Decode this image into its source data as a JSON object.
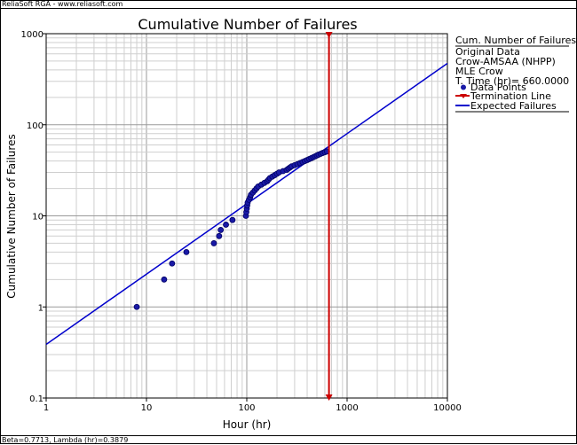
{
  "header": {
    "text": "ReliaSoft RGA - www.reliasoft.com"
  },
  "footer": {
    "text": "Beta=0.7713, Lambda (hr)=0.3879"
  },
  "colors": {
    "points": "#1a1aa6",
    "points_edge": "#000066",
    "line": "#0000cc",
    "termination": "#cc0000",
    "grid_major": "#9a9a9a",
    "grid_minor": "#cfcfcf"
  },
  "legend": {
    "title": "Cum. Number of Failures",
    "lines": [
      "Original Data",
      "Crow-AMSAA (NHPP)",
      "MLE Crow",
      "T. Time (hr)= 660.0000"
    ],
    "items": [
      {
        "label": "Data Points",
        "kind": "point"
      },
      {
        "label": "Termination Line",
        "kind": "termination"
      },
      {
        "label": "Expected Failures",
        "kind": "line"
      }
    ]
  },
  "chart_data": {
    "type": "scatter",
    "title": "Cumulative Number of Failures",
    "xlabel": "Hour (hr)",
    "ylabel": "Cumulative Number of Failures",
    "xscale": "log",
    "yscale": "log",
    "xlim": [
      1,
      10000
    ],
    "ylim": [
      0.1,
      1000
    ],
    "xticks": [
      1,
      10,
      100,
      1000,
      10000
    ],
    "xtick_labels": [
      "1",
      "10",
      "100",
      "1000",
      "10000"
    ],
    "yticks": [
      0.1,
      1,
      10,
      100,
      1000
    ],
    "ytick_labels": [
      "0.1",
      "1",
      "10",
      "100",
      "1000"
    ],
    "grid": true,
    "legend_position": "right",
    "series": [
      {
        "name": "Data Points",
        "kind": "points",
        "x": [
          8,
          15,
          18,
          25,
          47,
          53,
          55,
          62,
          72,
          98,
          99,
          100,
          101,
          102,
          105,
          108,
          110,
          115,
          120,
          125,
          130,
          140,
          150,
          160,
          165,
          170,
          180,
          190,
          200,
          210,
          230,
          250,
          260,
          270,
          280,
          300,
          320,
          340,
          360,
          380,
          400,
          420,
          440,
          460,
          480,
          500,
          520,
          545,
          570,
          600,
          630
        ],
        "y": [
          1,
          2,
          3,
          4,
          5,
          6,
          7,
          8,
          9,
          10,
          11,
          12,
          13,
          14,
          15,
          16,
          17,
          18,
          19,
          20,
          21,
          22,
          23,
          24,
          25,
          26,
          27,
          28,
          29,
          30,
          31,
          32,
          33,
          34,
          35,
          36,
          37,
          38,
          39,
          40,
          41,
          42,
          43,
          44,
          45,
          46,
          47,
          48,
          49,
          50,
          51
        ]
      },
      {
        "name": "Expected Failures",
        "kind": "line",
        "model": {
          "beta": 0.7713,
          "lambda": 0.3879
        },
        "x": [
          1,
          10000
        ]
      },
      {
        "name": "Termination Line",
        "kind": "vline",
        "x": 660
      }
    ]
  }
}
